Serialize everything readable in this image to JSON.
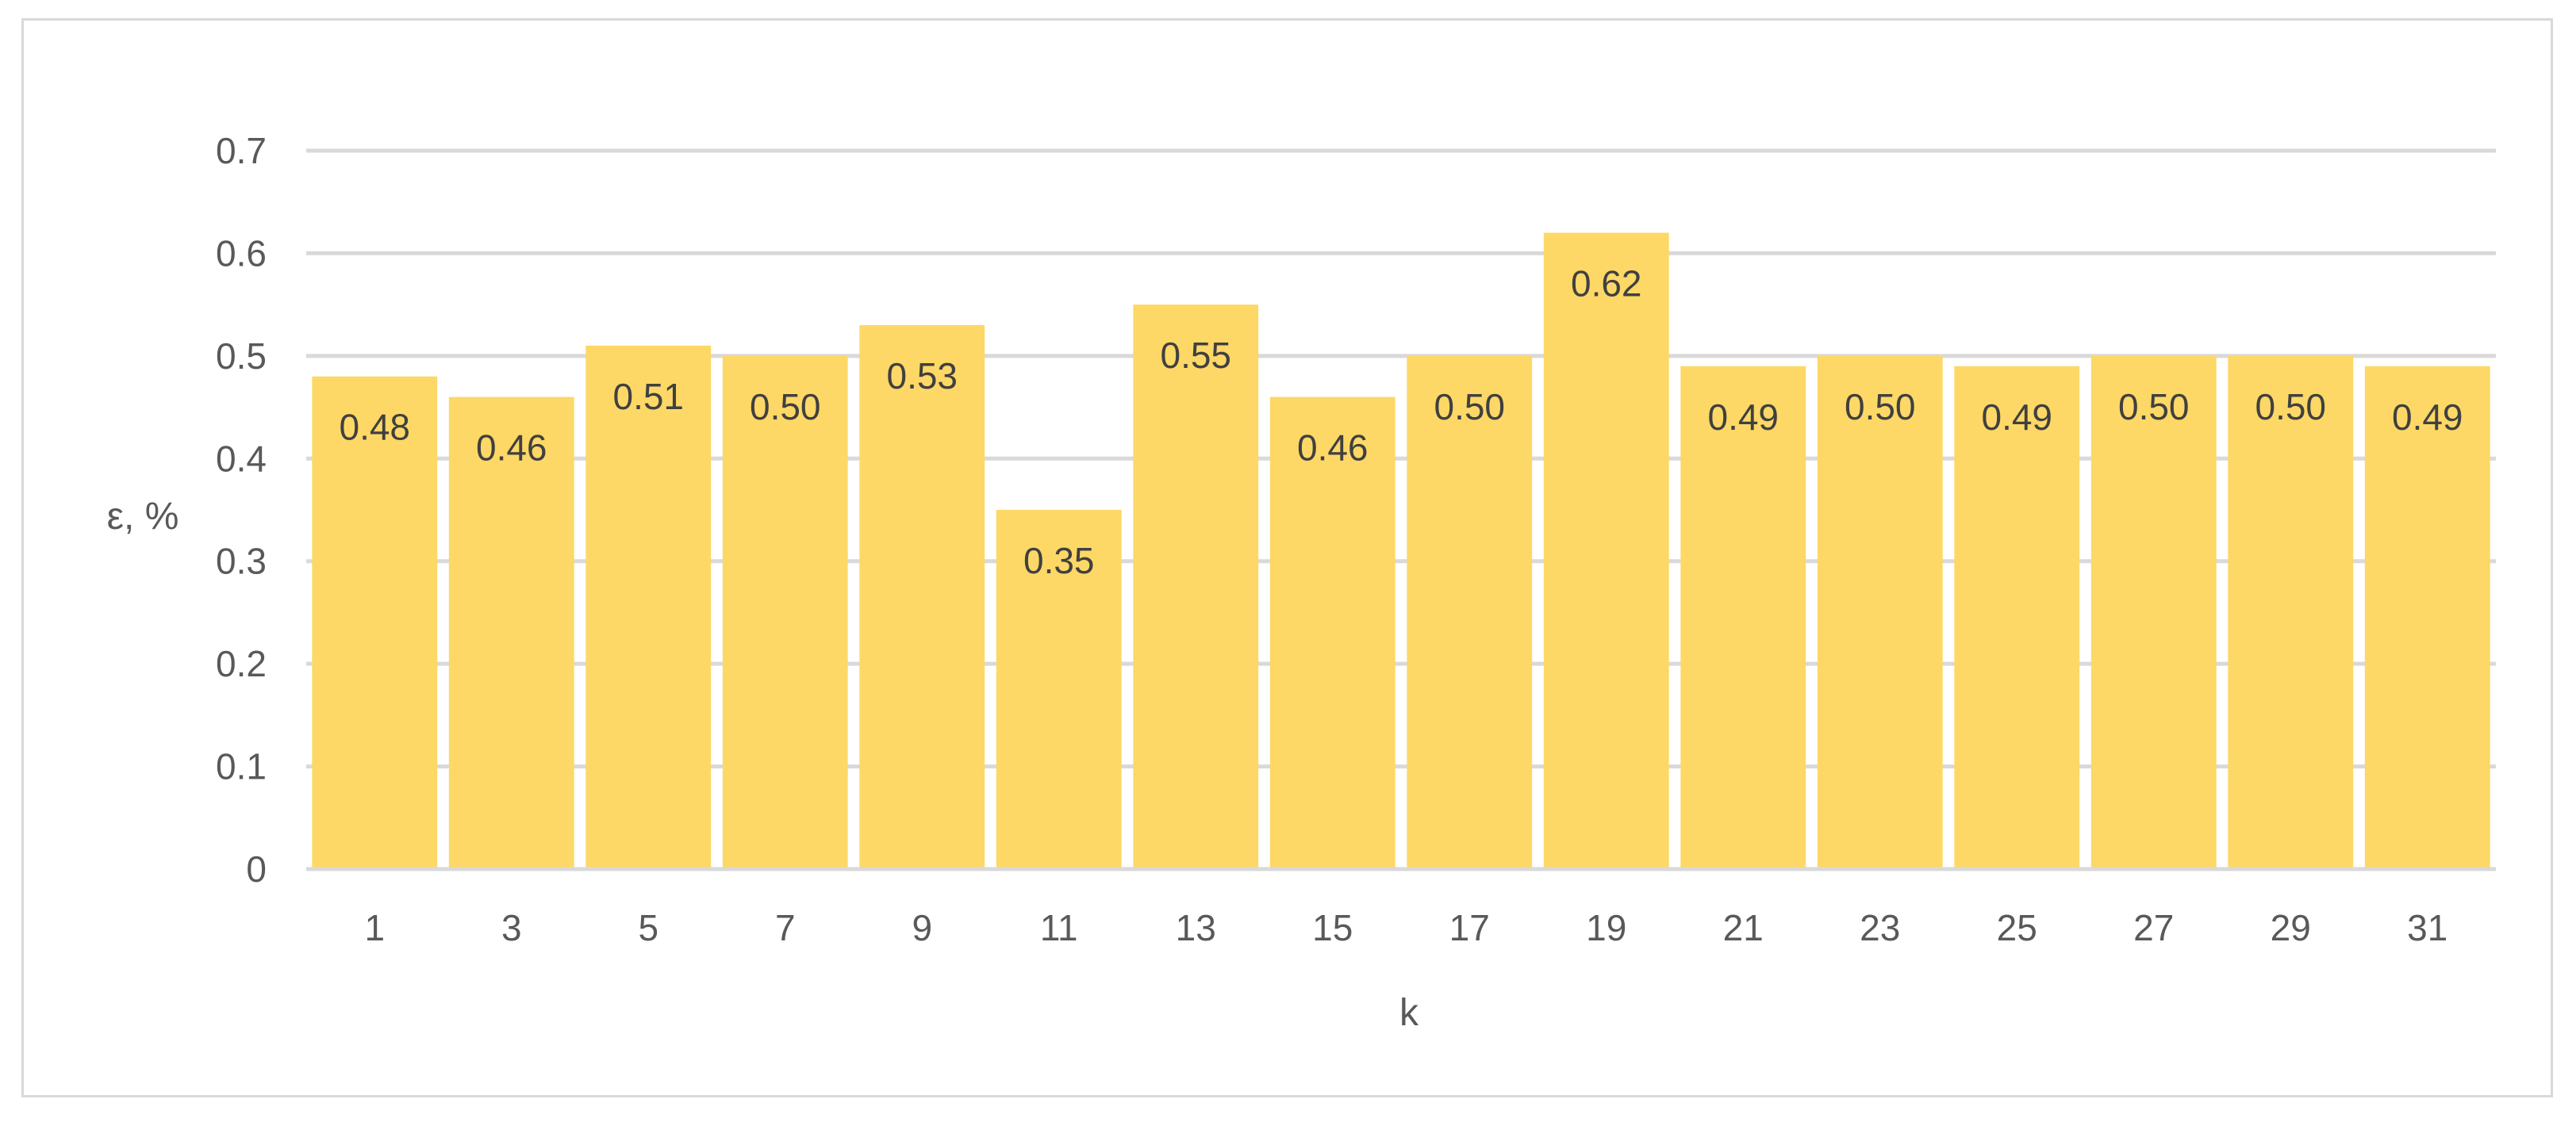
{
  "chart_data": {
    "type": "bar",
    "categories": [
      "1",
      "3",
      "5",
      "7",
      "9",
      "11",
      "13",
      "15",
      "17",
      "19",
      "21",
      "23",
      "25",
      "27",
      "29",
      "31"
    ],
    "values": [
      0.48,
      0.46,
      0.51,
      0.5,
      0.53,
      0.35,
      0.55,
      0.46,
      0.5,
      0.62,
      0.49,
      0.5,
      0.49,
      0.5,
      0.5,
      0.49
    ],
    "data_labels": [
      "0.48",
      "0.46",
      "0.51",
      "0.50",
      "0.53",
      "0.35",
      "0.55",
      "0.46",
      "0.50",
      "0.62",
      "0.49",
      "0.50",
      "0.49",
      "0.50",
      "0.50",
      "0.49"
    ],
    "title": "",
    "xlabel": "k",
    "ylabel": "ε, %",
    "ylim": [
      0,
      0.7
    ],
    "yticks": [
      0,
      0.1,
      0.2,
      0.3,
      0.4,
      0.5,
      0.6,
      0.7
    ],
    "ytick_labels": [
      "0",
      "0.1",
      "0.2",
      "0.3",
      "0.4",
      "0.5",
      "0.6",
      "0.7"
    ],
    "grid": true,
    "legend": "none",
    "bar_color": "#FDD866",
    "gridline_color": "#D9D9D9",
    "text_color": "#595959",
    "label_color": "#404040"
  }
}
